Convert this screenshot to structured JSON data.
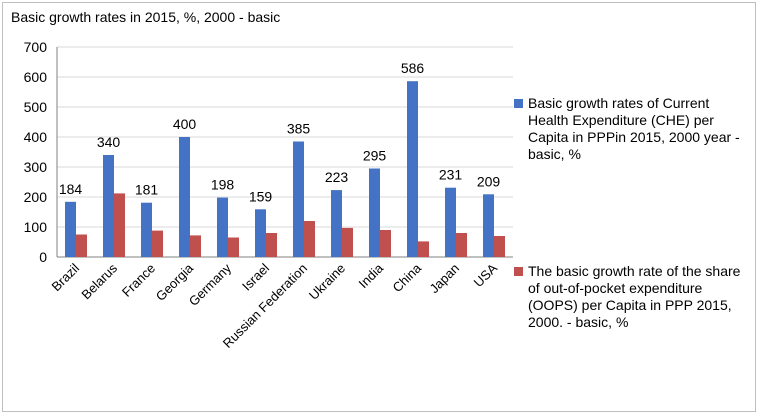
{
  "chart_data": {
    "type": "bar",
    "title": "Basic growth rates in 2015, %, 2000 - basic",
    "categories": [
      "Brazil",
      "Belarus",
      "France",
      "Georgia",
      "Germany",
      "Israel",
      "Russian Federation",
      "Ukraine",
      "India",
      "China",
      "Japan",
      "USA"
    ],
    "series": [
      {
        "name": "Basic growth rates of  Current Health Expenditure (CHE) per Capita in PPPin 2015, 2000 year - basic, %",
        "color": "#4472c4",
        "values": [
          184,
          340,
          181,
          400,
          198,
          159,
          385,
          223,
          295,
          586,
          231,
          209
        ],
        "data_labels": [
          "184",
          "340",
          "181",
          "400",
          "198",
          "159",
          "385",
          "223",
          "295",
          "586",
          "231",
          "209"
        ]
      },
      {
        "name": "The basic growth rate of the share of out-of-pocket expenditure (OOPS) per Capita in PPP 2015, 2000. - basic, %",
        "color": "#c0504d",
        "values": [
          75,
          212,
          88,
          72,
          65,
          80,
          120,
          97,
          90,
          52,
          80,
          70
        ]
      }
    ],
    "ylim": [
      0,
      700
    ],
    "yticks": [
      "0",
      "100",
      "200",
      "300",
      "400",
      "500",
      "600",
      "700"
    ],
    "grid": true,
    "legend_position": "right"
  }
}
